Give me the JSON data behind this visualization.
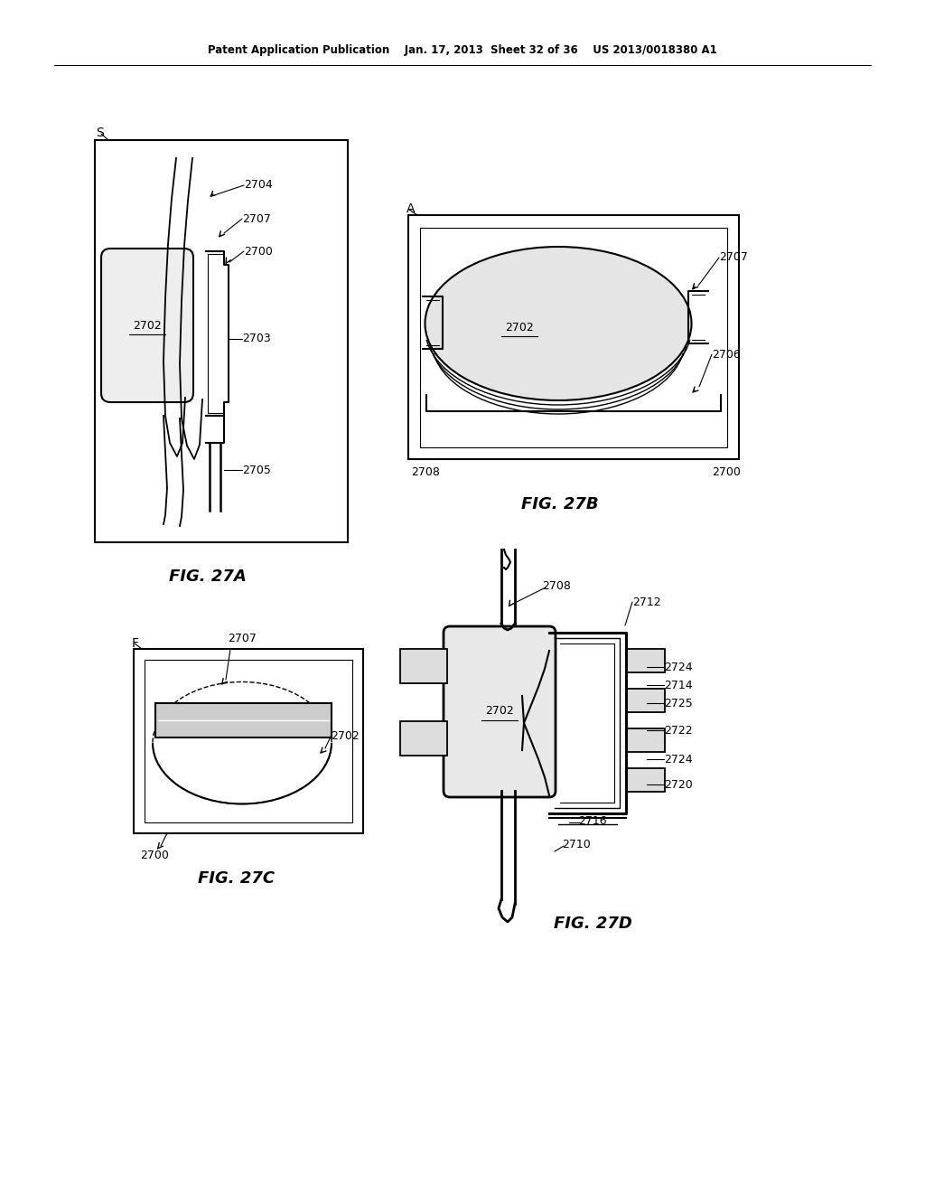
{
  "bg_color": "#ffffff",
  "header_text": "Patent Application Publication    Jan. 17, 2013  Sheet 32 of 36    US 2013/0018380 A1",
  "fig_labels": [
    "FIG. 27A",
    "FIG. 27B",
    "FIG. 27C",
    "FIG. 27D"
  ],
  "line_color": "#000000",
  "text_color": "#000000"
}
